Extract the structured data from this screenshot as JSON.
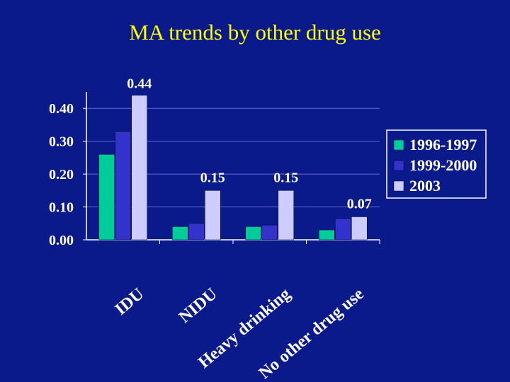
{
  "slide": {
    "title": "MA trends by other drug use"
  },
  "chart_data": {
    "type": "bar",
    "title": "",
    "xlabel": "",
    "ylabel": "",
    "categories": [
      "IDU",
      "NIDU",
      "Heavy drinking",
      "No other drug use"
    ],
    "series": [
      {
        "name": "1996-1997",
        "color": "#00cc99",
        "values": [
          0.26,
          0.04,
          0.04,
          0.03
        ]
      },
      {
        "name": "1999-2000",
        "color": "#3333cc",
        "values": [
          0.33,
          0.05,
          0.045,
          0.065
        ]
      },
      {
        "name": "2003",
        "color": "#ccccff",
        "values": [
          0.44,
          0.15,
          0.15,
          0.07
        ]
      }
    ],
    "y_ticks": [
      "0.00",
      "0.10",
      "0.20",
      "0.30",
      "0.40"
    ],
    "ylim": [
      0,
      0.44
    ],
    "data_labels": [
      "0.44",
      "0.15",
      "0.15",
      "0.07"
    ],
    "legend_position": "right",
    "grid": true
  }
}
